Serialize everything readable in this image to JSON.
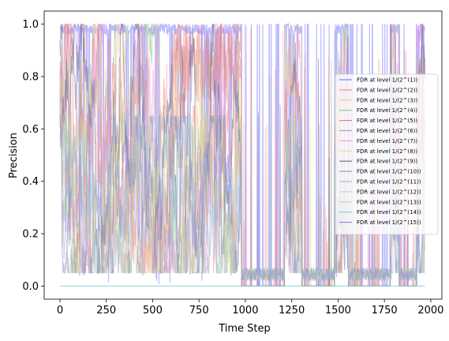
{
  "chart_data": {
    "type": "line",
    "title": "",
    "xlabel": "Time Step",
    "ylabel": "Precision",
    "xlim": [
      -85,
      2060
    ],
    "ylim": [
      -0.05,
      1.05
    ],
    "xticks": [
      0,
      250,
      500,
      750,
      1000,
      1250,
      1500,
      1750,
      2000
    ],
    "yticks": [
      0.0,
      0.2,
      0.4,
      0.6,
      0.8,
      1.0
    ],
    "xtick_labels": [
      "0",
      "250",
      "500",
      "750",
      "1000",
      "1250",
      "1500",
      "1750",
      "2000"
    ],
    "ytick_labels": [
      "0.0",
      "0.2",
      "0.4",
      "0.6",
      "0.8",
      "1.0"
    ],
    "grid": false,
    "legend_position": "center-right",
    "n_points": 1970,
    "series": [
      {
        "name": "FDR at level 1/(2^(1))",
        "color": "#8080ff",
        "kind": "top"
      },
      {
        "name": "FDR at level 1/(2^(2))",
        "color": "#ff8c7a",
        "kind": "mid"
      },
      {
        "name": "FDR at level 1/(2^(3))",
        "color": "#ffc08a",
        "kind": "mid"
      },
      {
        "name": "FDR at level 1/(2^(4))",
        "color": "#90c890",
        "kind": "mid"
      },
      {
        "name": "FDR at level 1/(2^(5))",
        "color": "#e08080",
        "kind": "mid"
      },
      {
        "name": "FDR at level 1/(2^(6))",
        "color": "#b89ad0",
        "kind": "mid"
      },
      {
        "name": "FDR at level 1/(2^(7))",
        "color": "#f0a0e0",
        "kind": "mid"
      },
      {
        "name": "FDR at level 1/(2^(8))",
        "color": "#e8e0a0",
        "kind": "mid"
      },
      {
        "name": "FDR at level 1/(2^(9))",
        "color": "#707090",
        "kind": "mid"
      },
      {
        "name": "FDR at level 1/(2^(10))",
        "color": "#a0a0a0",
        "kind": "low"
      },
      {
        "name": "FDR at level 1/(2^(11))",
        "color": "#a8c0d0",
        "kind": "low"
      },
      {
        "name": "FDR at level 1/(2^(12))",
        "color": "#b0d8e0",
        "kind": "low"
      },
      {
        "name": "FDR at level 1/(2^(13))",
        "color": "#c8d0a0",
        "kind": "low"
      },
      {
        "name": "FDR at level 1/(2^(14))",
        "color": "#80d0d0",
        "kind": "zero"
      },
      {
        "name": "FDR at level 1/(2^(15))",
        "color": "#9090d0",
        "kind": "low"
      }
    ]
  }
}
